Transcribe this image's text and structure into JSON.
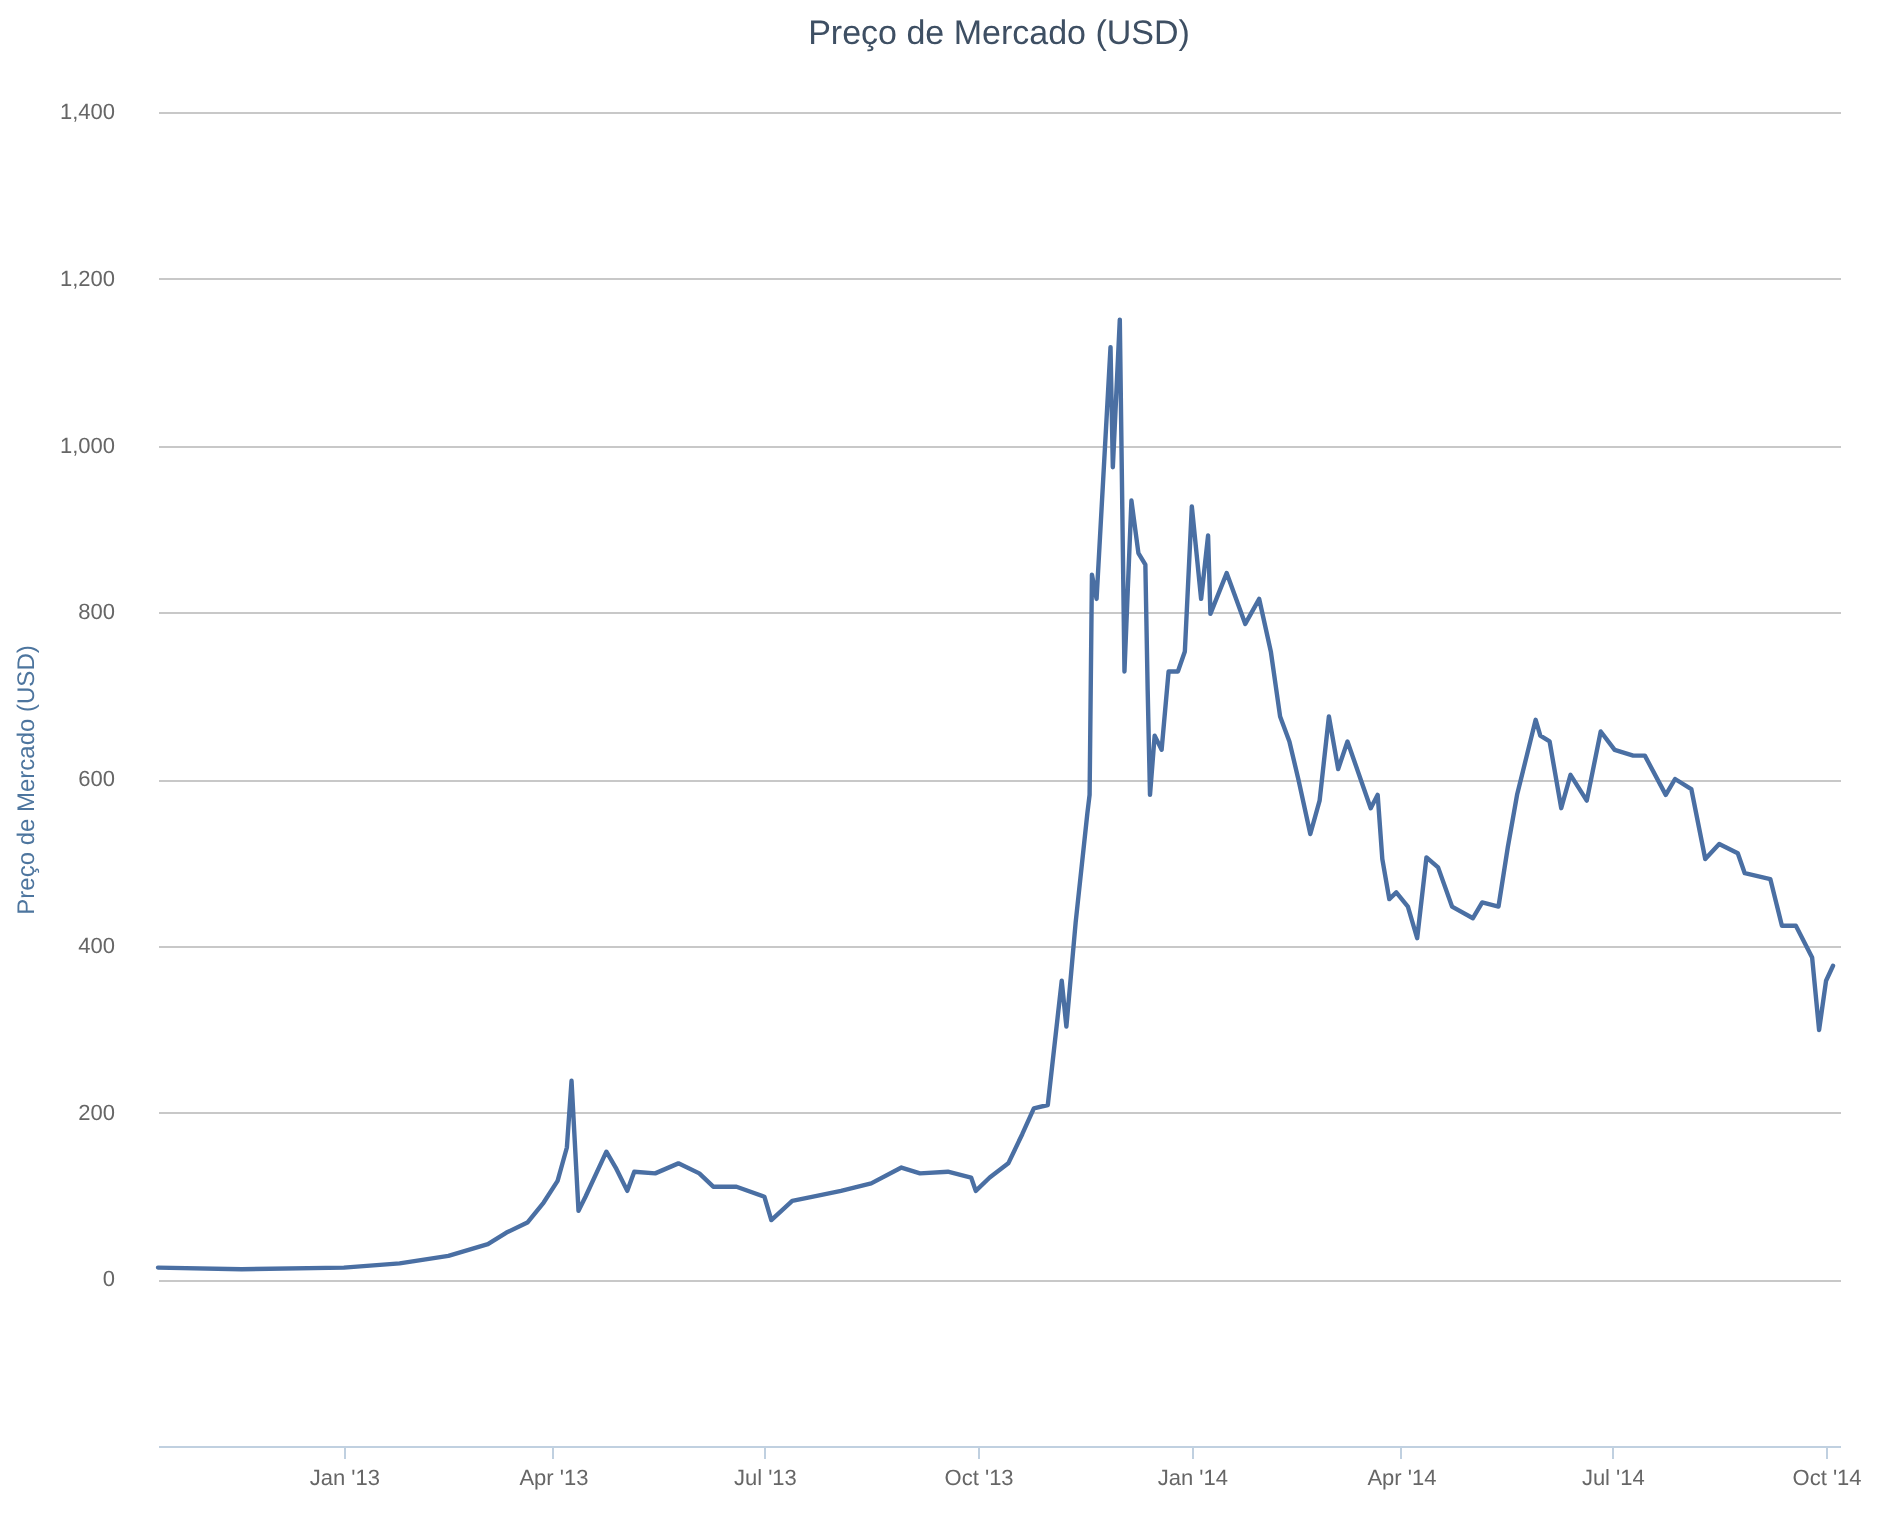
{
  "chart_data": {
    "type": "line",
    "title": "Preço de Mercado (USD)",
    "ylabel": "Preço de Mercado (USD)",
    "xlim": [
      "2012-10-13",
      "2014-10-07"
    ],
    "ylim": [
      -200,
      1400
    ],
    "xticks": [
      {
        "value": "2013-01-01",
        "label": "Jan '13"
      },
      {
        "value": "2013-04-01",
        "label": "Apr '13"
      },
      {
        "value": "2013-07-01",
        "label": "Jul '13"
      },
      {
        "value": "2013-10-01",
        "label": "Oct '13"
      },
      {
        "value": "2014-01-01",
        "label": "Jan '14"
      },
      {
        "value": "2014-04-01",
        "label": "Apr '14"
      },
      {
        "value": "2014-07-01",
        "label": "Jul '14"
      },
      {
        "value": "2014-10-01",
        "label": "Oct '14"
      }
    ],
    "yticks": [
      0,
      200,
      400,
      600,
      800,
      {
        "value": 1000,
        "label": "1,000"
      },
      {
        "value": 1200,
        "label": "1,200"
      },
      {
        "value": 1400,
        "label": "1,400"
      }
    ],
    "grid": "y",
    "marker": "none",
    "line_style": "solid",
    "x": [
      "2012-10-13",
      "2012-11-18",
      "2013-01-01",
      "2013-01-25",
      "2013-02-15",
      "2013-03-04",
      "2013-03-12",
      "2013-03-21",
      "2013-03-28",
      "2013-04-03",
      "2013-04-07",
      "2013-04-09",
      "2013-04-12",
      "2013-04-15",
      "2013-04-24",
      "2013-04-28",
      "2013-05-03",
      "2013-05-06",
      "2013-05-15",
      "2013-05-25",
      "2013-06-03",
      "2013-06-09",
      "2013-06-19",
      "2013-07-01",
      "2013-07-04",
      "2013-07-13",
      "2013-07-22",
      "2013-08-03",
      "2013-08-16",
      "2013-08-29",
      "2013-09-06",
      "2013-09-18",
      "2013-09-28",
      "2013-09-30",
      "2013-10-06",
      "2013-10-14",
      "2013-10-20",
      "2013-10-25",
      "2013-10-31",
      "2013-11-06",
      "2013-11-08",
      "2013-11-12",
      "2013-11-17",
      "2013-11-18",
      "2013-11-19",
      "2013-11-21",
      "2013-11-27",
      "2013-11-28",
      "2013-12-01",
      "2013-12-03",
      "2013-12-06",
      "2013-12-09",
      "2013-12-12",
      "2013-12-13",
      "2013-12-14",
      "2013-12-16",
      "2013-12-19",
      "2013-12-22",
      "2013-12-26",
      "2013-12-29",
      "2014-01-01",
      "2014-01-05",
      "2014-01-08",
      "2014-01-09",
      "2014-01-16",
      "2014-01-24",
      "2014-01-30",
      "2014-02-04",
      "2014-02-08",
      "2014-02-12",
      "2014-02-16",
      "2014-02-21",
      "2014-02-25",
      "2014-03-01",
      "2014-03-05",
      "2014-03-09",
      "2014-03-19",
      "2014-03-22",
      "2014-03-24",
      "2014-03-27",
      "2014-03-30",
      "2014-04-04",
      "2014-04-08",
      "2014-04-12",
      "2014-04-17",
      "2014-04-23",
      "2014-05-02",
      "2014-05-06",
      "2014-05-13",
      "2014-05-17",
      "2014-05-21",
      "2014-05-29",
      "2014-05-31",
      "2014-06-04",
      "2014-06-09",
      "2014-06-13",
      "2014-06-20",
      "2014-06-26",
      "2014-07-02",
      "2014-07-10",
      "2014-07-15",
      "2014-07-24",
      "2014-07-28",
      "2014-08-04",
      "2014-08-10",
      "2014-08-16",
      "2014-08-24",
      "2014-08-27",
      "2014-09-07",
      "2014-09-12",
      "2014-09-18",
      "2014-09-25",
      "2014-09-28",
      "2014-10-01",
      "2014-10-04"
    ],
    "series": [
      {
        "color": "#4a6fa3",
        "values": [
          14,
          12,
          14,
          19,
          28,
          42,
          56,
          68,
          92,
          118,
          158,
          238,
          82,
          99,
          153,
          134,
          106,
          129,
          127,
          139,
          127,
          111,
          111,
          99,
          71,
          94,
          99,
          106,
          115,
          134,
          127,
          129,
          122,
          106,
          122,
          139,
          174,
          205,
          209,
          358,
          303,
          428,
          558,
          581,
          845,
          816,
          1118,
          974,
          1151,
          729,
          934,
          871,
          857,
          706,
          581,
          652,
          635,
          729,
          729,
          753,
          927,
          816,
          892,
          798,
          847,
          786,
          816,
          753,
          675,
          645,
          598,
          534,
          574,
          675,
          612,
          645,
          565,
          581,
          504,
          456,
          464,
          447,
          409,
          506,
          494,
          447,
          433,
          452,
          447,
          518,
          581,
          671,
          652,
          645,
          565,
          605,
          574,
          657,
          635,
          628,
          628,
          581,
          600,
          588,
          504,
          522,
          511,
          487,
          480,
          424,
          424,
          386,
          299,
          358,
          376
        ]
      }
    ]
  }
}
